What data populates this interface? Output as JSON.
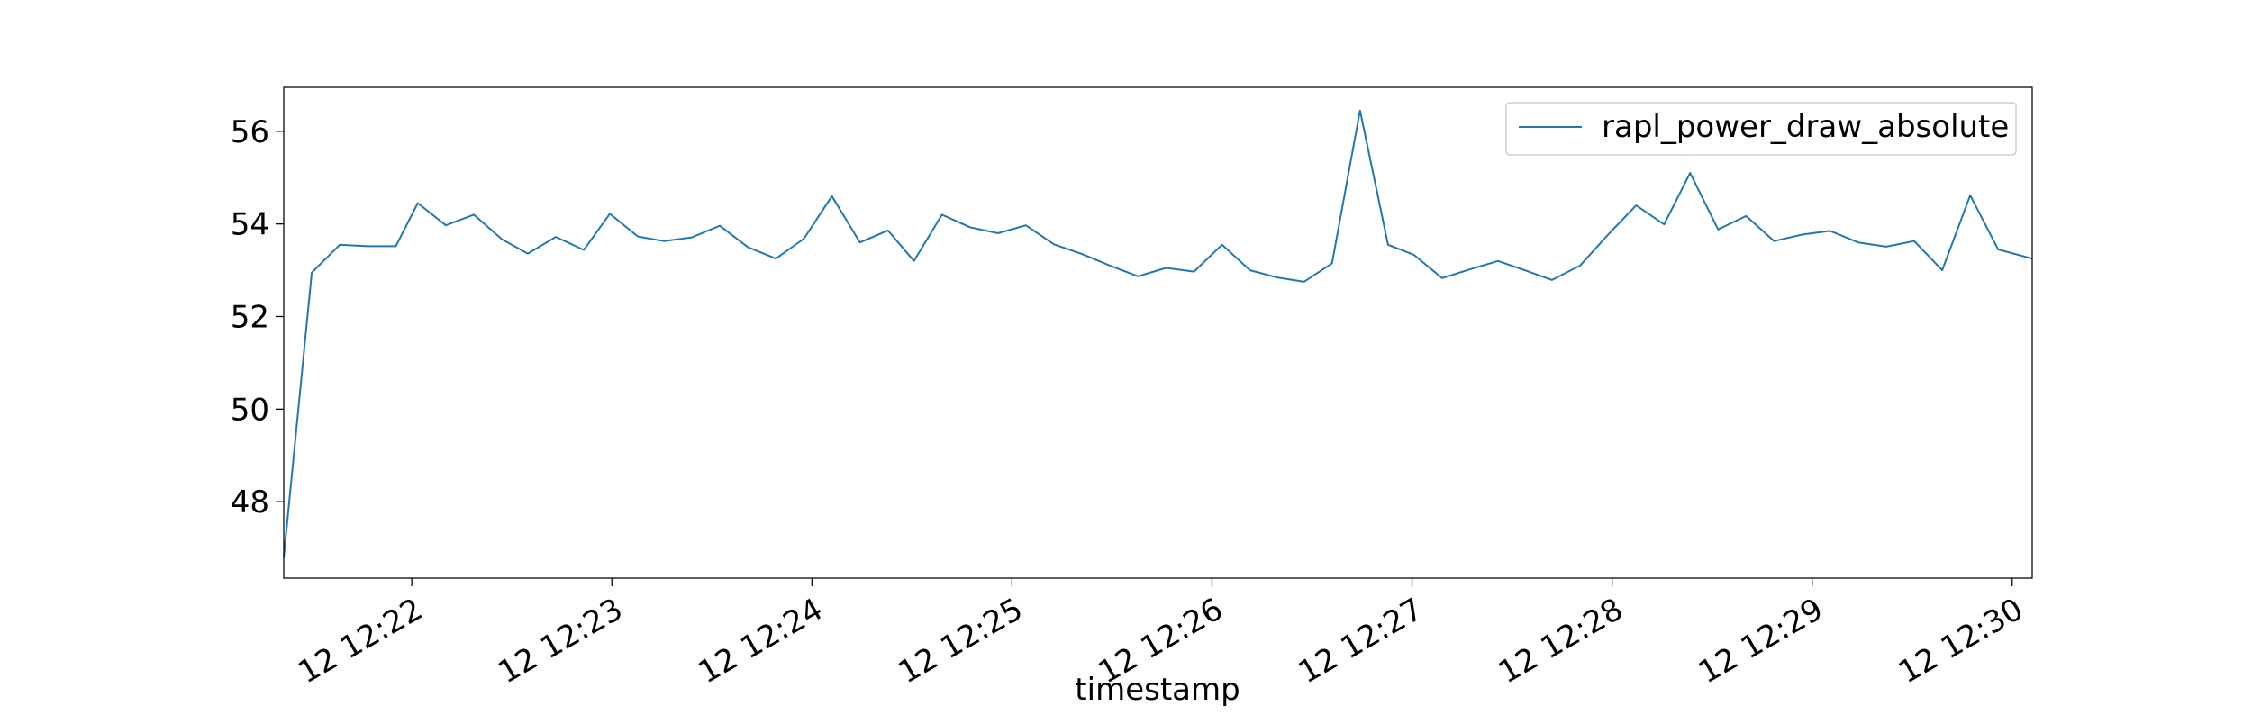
{
  "chart_data": {
    "type": "line",
    "title": "",
    "xlabel": "timestamp",
    "ylabel": "",
    "x_tick_labels": [
      "12 12:22",
      "12 12:23",
      "12 12:24",
      "12 12:25",
      "12 12:26",
      "12 12:27",
      "12 12:28",
      "12 12:29",
      "12 12:30"
    ],
    "x_tick_values": [
      22,
      23,
      24,
      25,
      26,
      27,
      28,
      29,
      30
    ],
    "y_tick_values": [
      48,
      50,
      52,
      54,
      56
    ],
    "xlim": [
      21.36,
      30.1
    ],
    "ylim": [
      46.35,
      56.95
    ],
    "x_unit": "minutes past 12:00",
    "grid": false,
    "legend_location": "top-right",
    "series": [
      {
        "name": "rapl_power_draw_absolute",
        "color": "#1f77b4",
        "x": [
          21.36,
          21.5,
          21.64,
          21.78,
          21.92,
          22.03,
          22.17,
          22.31,
          22.45,
          22.58,
          22.72,
          22.86,
          22.99,
          23.13,
          23.26,
          23.4,
          23.54,
          23.68,
          23.82,
          23.96,
          24.1,
          24.24,
          24.38,
          24.51,
          24.65,
          24.79,
          24.93,
          25.07,
          25.21,
          25.35,
          25.49,
          25.63,
          25.77,
          25.91,
          26.05,
          26.19,
          26.33,
          26.46,
          26.6,
          26.74,
          26.88,
          27.01,
          27.15,
          27.29,
          27.43,
          27.57,
          27.7,
          27.84,
          27.98,
          28.12,
          28.26,
          28.39,
          28.53,
          28.67,
          28.81,
          28.95,
          29.09,
          29.23,
          29.37,
          29.51,
          29.65,
          29.79,
          29.93,
          30.1
        ],
        "y": [
          46.8,
          52.95,
          53.55,
          53.52,
          53.52,
          54.45,
          53.97,
          54.2,
          53.67,
          53.36,
          53.72,
          53.44,
          54.22,
          53.73,
          53.63,
          53.71,
          53.96,
          53.5,
          53.25,
          53.68,
          54.6,
          53.6,
          53.86,
          53.2,
          54.2,
          53.93,
          53.8,
          53.97,
          53.56,
          53.35,
          53.1,
          52.87,
          53.05,
          52.97,
          53.55,
          53.0,
          52.84,
          52.75,
          53.15,
          56.45,
          53.55,
          53.33,
          52.83,
          53.02,
          53.2,
          52.99,
          52.79,
          53.1,
          53.77,
          54.4,
          53.99,
          55.1,
          53.88,
          54.17,
          53.63,
          53.77,
          53.85,
          53.6,
          53.51,
          53.63,
          53.0,
          54.62,
          53.45,
          53.25
        ]
      }
    ]
  }
}
